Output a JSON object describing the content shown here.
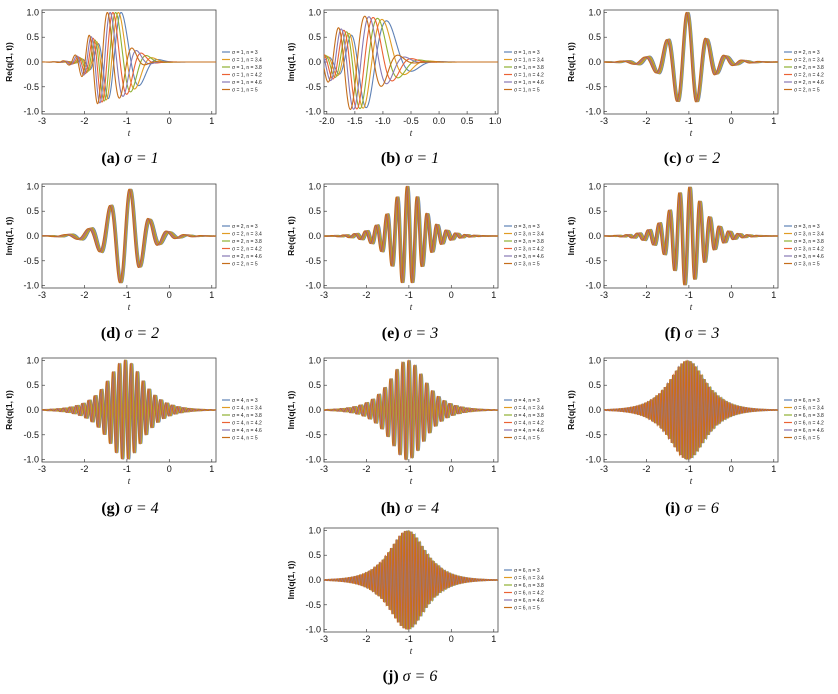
{
  "figure": {
    "legend_colors": [
      "#5e81b5",
      "#e19c24",
      "#8fb032",
      "#eb6235",
      "#8778b3",
      "#c56e1a"
    ]
  },
  "chart_data": [
    {
      "id": "a",
      "type": "line",
      "component": "Re",
      "sigma": 1,
      "caption_label": "(a)",
      "caption_sigma": "σ = 1",
      "ylabel": "Re(q(1, t))",
      "xlabel": "t",
      "xlim": [
        -3,
        1.1
      ],
      "ylim": [
        -1.05,
        1.05
      ],
      "xticks": [
        -3,
        -2,
        -1,
        0,
        1
      ],
      "yticks": [
        -1.0,
        -0.5,
        0.0,
        0.5,
        1.0
      ],
      "series_names": [
        "σ = 1, n = 3",
        "σ = 1, n = 3.4",
        "σ = 1, n = 3.8",
        "σ = 1, n = 4.2",
        "σ = 1, n = 4.6",
        "σ = 1, n = 5"
      ],
      "legend": "right"
    },
    {
      "id": "b",
      "type": "line",
      "component": "Im",
      "sigma": 1,
      "caption_label": "(b)",
      "caption_sigma": "σ = 1",
      "ylabel": "Im(q(1, t))",
      "xlabel": "t",
      "xlim": [
        -2.05,
        1.05
      ],
      "ylim": [
        -1.05,
        1.05
      ],
      "xticks": [
        -2.0,
        -1.5,
        -1.0,
        -0.5,
        0.0,
        0.5,
        1.0
      ],
      "yticks": [
        -1.0,
        -0.5,
        0.0,
        0.5,
        1.0
      ],
      "series_names": [
        "σ = 1, n = 3",
        "σ = 1, n = 3.4",
        "σ = 1, n = 3.8",
        "σ = 1, n = 4.2",
        "σ = 1, n = 4.6",
        "σ = 1, n = 5"
      ],
      "legend": "right"
    },
    {
      "id": "c",
      "type": "line",
      "component": "Re",
      "sigma": 2,
      "caption_label": "(c)",
      "caption_sigma": "σ = 2",
      "ylabel": "Re(q(1, t))",
      "xlabel": "t",
      "xlim": [
        -3,
        1.1
      ],
      "ylim": [
        -1.05,
        1.05
      ],
      "xticks": [
        -3,
        -2,
        -1,
        0,
        1
      ],
      "yticks": [
        -1.0,
        -0.5,
        0.0,
        0.5,
        1.0
      ],
      "series_names": [
        "σ = 2, n = 3",
        "σ = 2, n = 3.4",
        "σ = 2, n = 3.8",
        "σ = 2, n = 4.2",
        "σ = 2, n = 4.6",
        "σ = 2, n = 5"
      ],
      "legend": "right"
    },
    {
      "id": "d",
      "type": "line",
      "component": "Im",
      "sigma": 2,
      "caption_label": "(d)",
      "caption_sigma": "σ = 2",
      "ylabel": "Im(q(1, t))",
      "xlabel": "t",
      "xlim": [
        -3,
        1.1
      ],
      "ylim": [
        -1.05,
        1.05
      ],
      "xticks": [
        -3,
        -2,
        -1,
        0,
        1
      ],
      "yticks": [
        -1.0,
        -0.5,
        0.0,
        0.5,
        1.0
      ],
      "series_names": [
        "σ = 2, n = 3",
        "σ = 2, n = 3.4",
        "σ = 2, n = 3.8",
        "σ = 2, n = 4.2",
        "σ = 2, n = 4.6",
        "σ = 2, n = 5"
      ],
      "legend": "right"
    },
    {
      "id": "e",
      "type": "line",
      "component": "Re",
      "sigma": 3,
      "caption_label": "(e)",
      "caption_sigma": "σ = 3",
      "ylabel": "Re(q(1, t))",
      "xlabel": "t",
      "xlim": [
        -3,
        1.1
      ],
      "ylim": [
        -1.05,
        1.05
      ],
      "xticks": [
        -3,
        -2,
        -1,
        0,
        1
      ],
      "yticks": [
        -1.0,
        -0.5,
        0.0,
        0.5,
        1.0
      ],
      "series_names": [
        "σ = 3, n = 3",
        "σ = 3, n = 3.4",
        "σ = 3, n = 3.8",
        "σ = 3, n = 4.2",
        "σ = 3, n = 4.6",
        "σ = 3, n = 5"
      ],
      "legend": "right"
    },
    {
      "id": "f",
      "type": "line",
      "component": "Im",
      "sigma": 3,
      "caption_label": "(f)",
      "caption_sigma": "σ = 3",
      "ylabel": "Im(q(1, t))",
      "xlabel": "t",
      "xlim": [
        -3,
        1.1
      ],
      "ylim": [
        -1.05,
        1.05
      ],
      "xticks": [
        -3,
        -2,
        -1,
        0,
        1
      ],
      "yticks": [
        -1.0,
        -0.5,
        0.0,
        0.5,
        1.0
      ],
      "series_names": [
        "σ = 3, n = 3",
        "σ = 3, n = 3.4",
        "σ = 3, n = 3.8",
        "σ = 3, n = 4.2",
        "σ = 3, n = 4.6",
        "σ = 3, n = 5"
      ],
      "legend": "right"
    },
    {
      "id": "g",
      "type": "line",
      "component": "Re",
      "sigma": 4,
      "caption_label": "(g)",
      "caption_sigma": "σ = 4",
      "ylabel": "Re(q(1, t))",
      "xlabel": "t",
      "xlim": [
        -3,
        1.1
      ],
      "ylim": [
        -1.05,
        1.05
      ],
      "xticks": [
        -3,
        -2,
        -1,
        0,
        1
      ],
      "yticks": [
        -1.0,
        -0.5,
        0.0,
        0.5,
        1.0
      ],
      "series_names": [
        "σ = 4, n = 3",
        "σ = 4, n = 3.4",
        "σ = 4, n = 3.8",
        "σ = 4, n = 4.2",
        "σ = 4, n = 4.6",
        "σ = 4, n = 5"
      ],
      "legend": "right"
    },
    {
      "id": "h",
      "type": "line",
      "component": "Im",
      "sigma": 4,
      "caption_label": "(h)",
      "caption_sigma": "σ = 4",
      "ylabel": "Im(q(1, t))",
      "xlabel": "t",
      "xlim": [
        -3,
        1.1
      ],
      "ylim": [
        -1.05,
        1.05
      ],
      "xticks": [
        -3,
        -2,
        -1,
        0,
        1
      ],
      "yticks": [
        -1.0,
        -0.5,
        0.0,
        0.5,
        1.0
      ],
      "series_names": [
        "σ = 4, n = 3",
        "σ = 4, n = 3.4",
        "σ = 4, n = 3.8",
        "σ = 4, n = 4.2",
        "σ = 4, n = 4.6",
        "σ = 4, n = 5"
      ],
      "legend": "right"
    },
    {
      "id": "i",
      "type": "line",
      "component": "Re",
      "sigma": 6,
      "caption_label": "(i)",
      "caption_sigma": "σ = 6",
      "ylabel": "Re(q(1, t))",
      "xlabel": "t",
      "xlim": [
        -3,
        1.1
      ],
      "ylim": [
        -1.05,
        1.05
      ],
      "xticks": [
        -3,
        -2,
        -1,
        0,
        1
      ],
      "yticks": [
        -1.0,
        -0.5,
        0.0,
        0.5,
        1.0
      ],
      "series_names": [
        "σ = 6, n = 3",
        "σ = 6, n = 3.4",
        "σ = 6, n = 3.8",
        "σ = 6, n = 4.2",
        "σ = 6, n = 4.6",
        "σ = 6, n = 5"
      ],
      "legend": "right"
    },
    {
      "id": "j",
      "type": "line",
      "component": "Im",
      "sigma": 6,
      "caption_label": "(j)",
      "caption_sigma": "σ = 6",
      "ylabel": "Im(q(1, t))",
      "xlabel": "t",
      "xlim": [
        -3,
        1.1
      ],
      "ylim": [
        -1.05,
        1.05
      ],
      "xticks": [
        -3,
        -2,
        -1,
        0,
        1
      ],
      "yticks": [
        -1.0,
        -0.5,
        0.0,
        0.5,
        1.0
      ],
      "series_names": [
        "σ = 6, n = 3",
        "σ = 6, n = 3.4",
        "σ = 6, n = 3.8",
        "σ = 6, n = 4.2",
        "σ = 6, n = 4.6",
        "σ = 6, n = 5"
      ],
      "legend": "right"
    }
  ]
}
